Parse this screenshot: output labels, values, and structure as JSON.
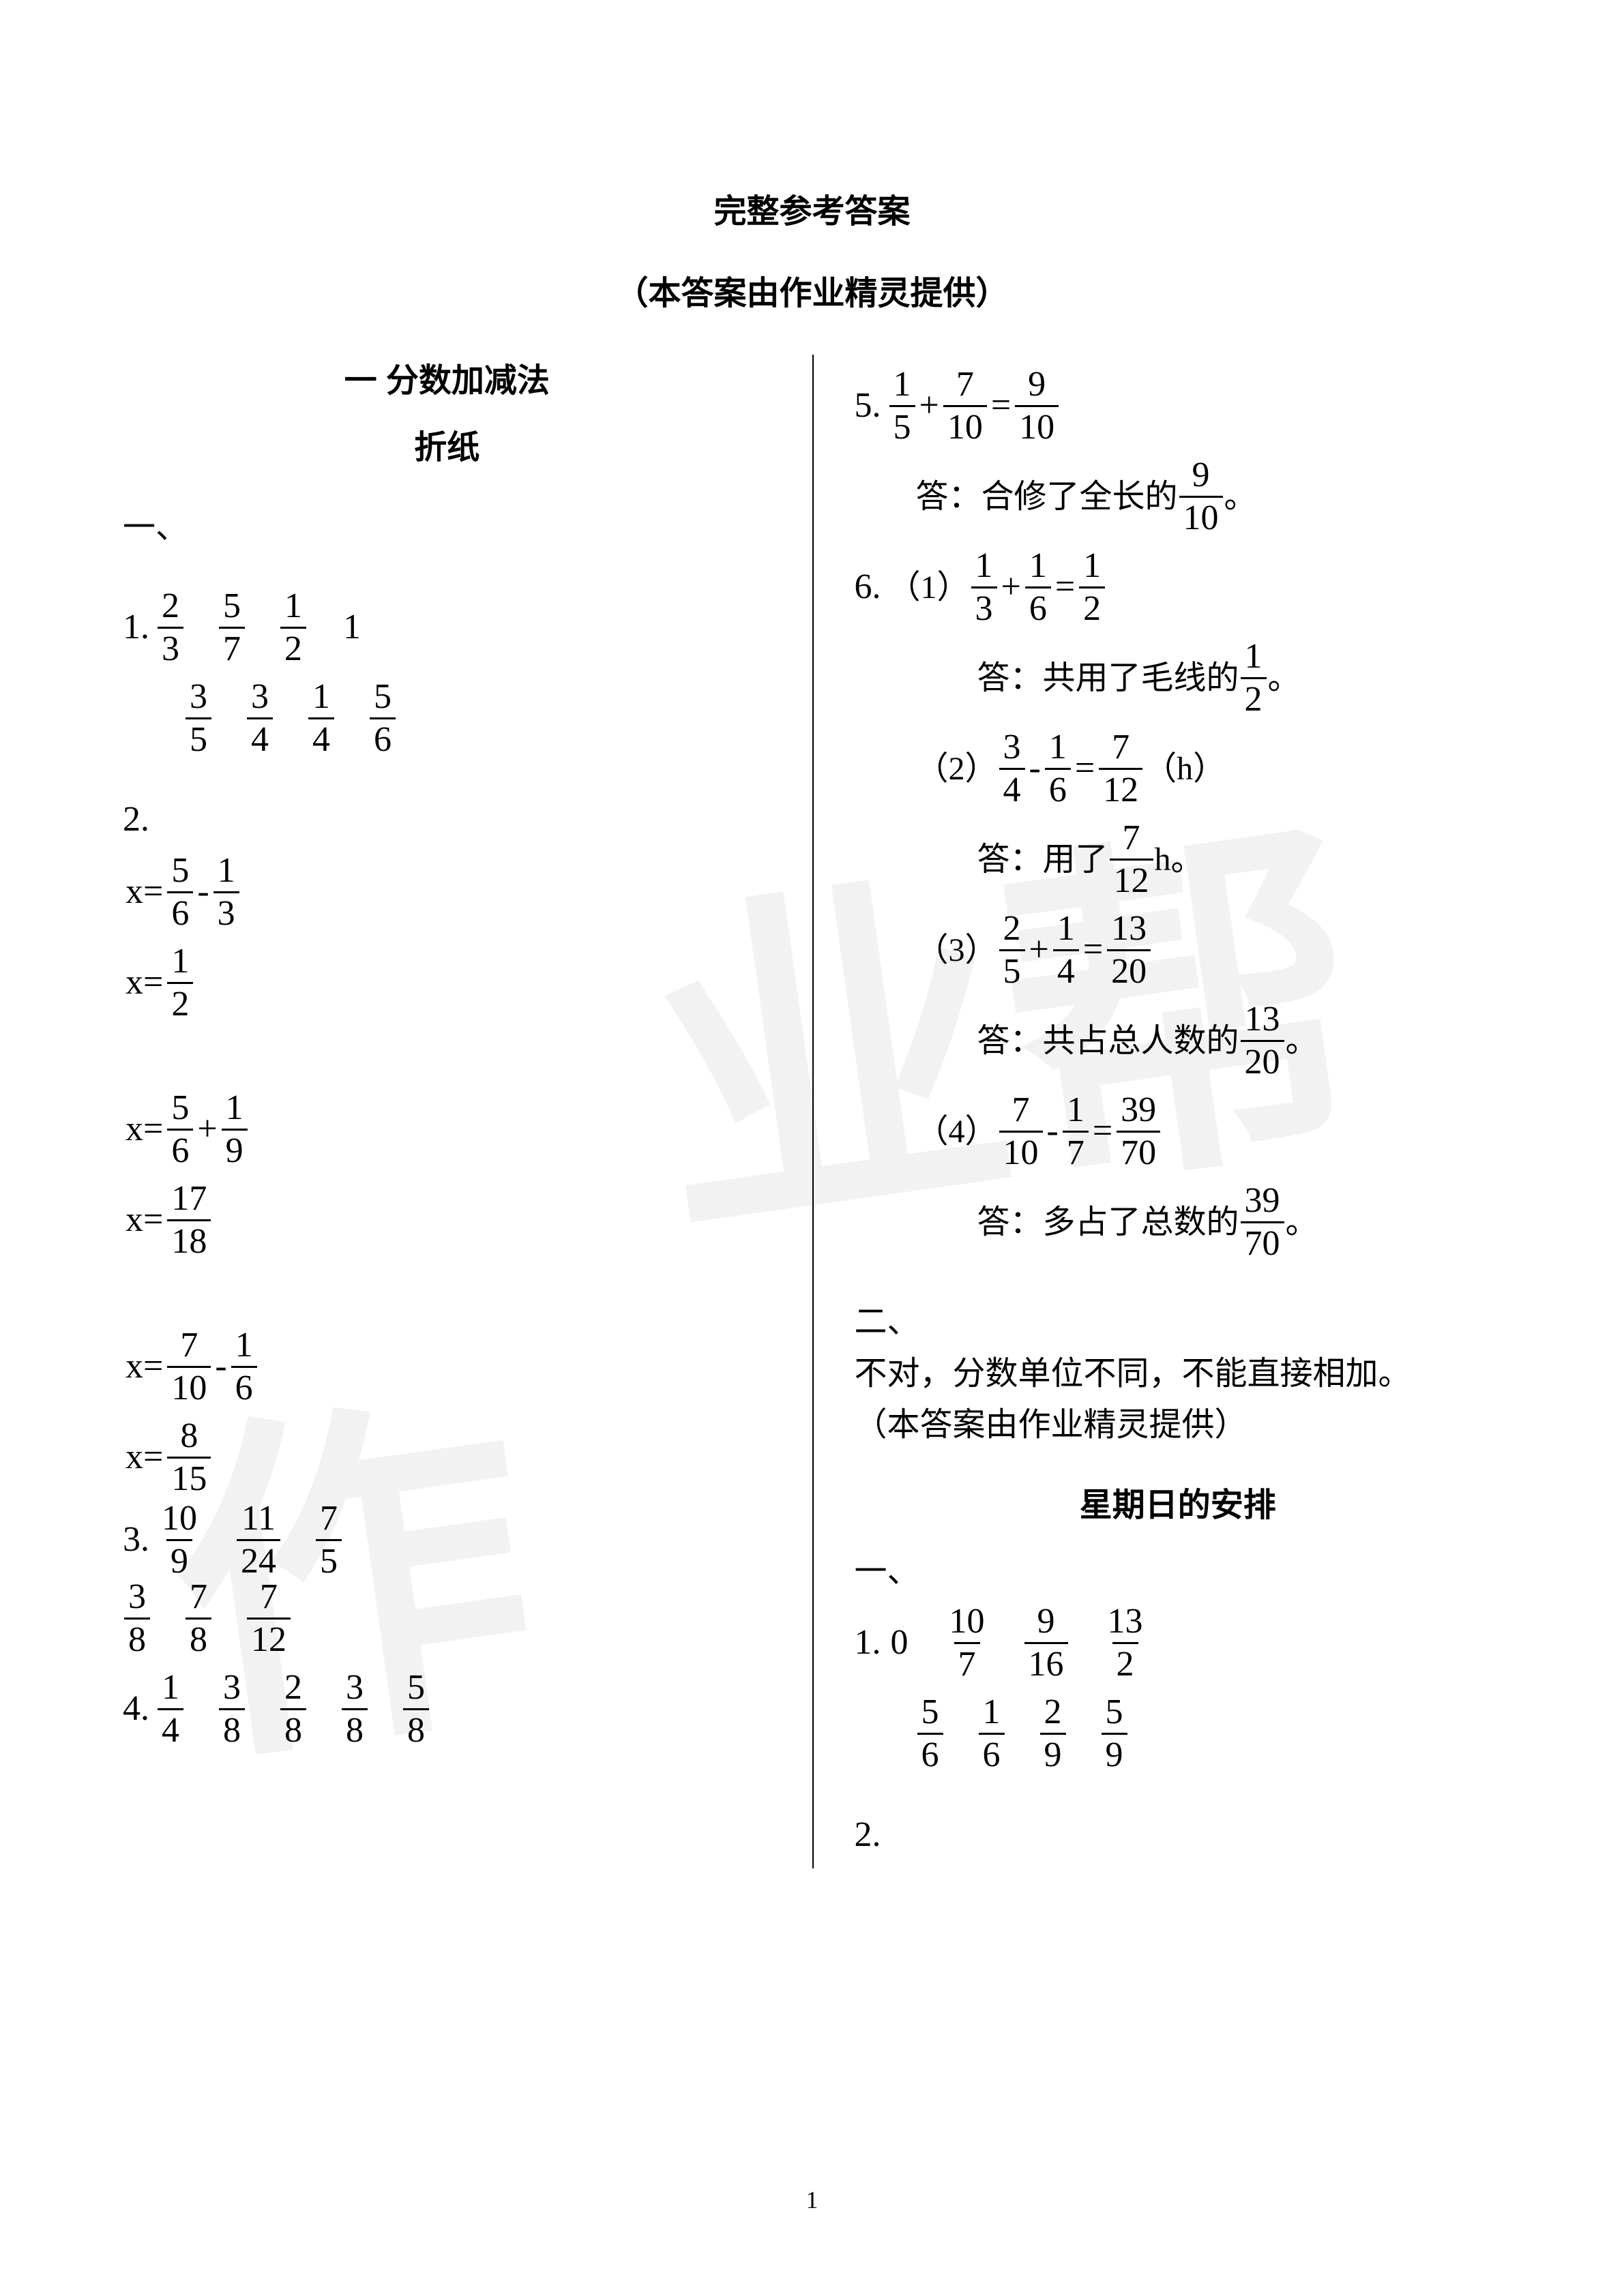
{
  "title_main": "完整参考答案",
  "title_sub": "（本答案由作业精灵提供）",
  "chapter": "一  分数加减法",
  "section_a": "折纸",
  "section_b": "星期日的安排",
  "sec_one": "一、",
  "sec_two": "二、",
  "attrib": "（本答案由作业精灵提供）",
  "page_num": "1",
  "left": {
    "q1_label": "1.",
    "q1r1": [
      {
        "n": "2",
        "d": "3"
      },
      {
        "n": "5",
        "d": "7"
      },
      {
        "n": "1",
        "d": "2"
      }
    ],
    "q1r1_plain": "1",
    "q1r2": [
      {
        "n": "3",
        "d": "5"
      },
      {
        "n": "3",
        "d": "4"
      },
      {
        "n": "1",
        "d": "4"
      },
      {
        "n": "5",
        "d": "6"
      }
    ],
    "q2_label": "2.",
    "q2a_lhs": "x=",
    "q2a_f1": {
      "n": "5",
      "d": "6"
    },
    "q2a_op": "-",
    "q2a_f2": {
      "n": "1",
      "d": "3"
    },
    "q2a_res_lhs": "x=",
    "q2a_res": {
      "n": "1",
      "d": "2"
    },
    "q2b_lhs": "x=",
    "q2b_f1": {
      "n": "5",
      "d": "6"
    },
    "q2b_op": "+",
    "q2b_f2": {
      "n": "1",
      "d": "9"
    },
    "q2b_res_lhs": "x=",
    "q2b_res": {
      "n": "17",
      "d": "18"
    },
    "q2c_lhs": "x=",
    "q2c_f1": {
      "n": "7",
      "d": "10"
    },
    "q2c_op": "-",
    "q2c_f2": {
      "n": "1",
      "d": "6"
    },
    "q2c_res_lhs": "x=",
    "q2c_res": {
      "n": "8",
      "d": "15"
    },
    "q3_label": "3.",
    "q3r1": [
      {
        "n": "10",
        "d": "9"
      },
      {
        "n": "11",
        "d": "24"
      },
      {
        "n": "7",
        "d": "5"
      }
    ],
    "q3r2": [
      {
        "n": "3",
        "d": "8"
      },
      {
        "n": "7",
        "d": "8"
      },
      {
        "n": "7",
        "d": "12"
      }
    ],
    "q4_label": "4.",
    "q4": [
      {
        "n": "1",
        "d": "4"
      },
      {
        "n": "3",
        "d": "8"
      },
      {
        "n": "2",
        "d": "8"
      },
      {
        "n": "3",
        "d": "8"
      },
      {
        "n": "5",
        "d": "8"
      }
    ]
  },
  "right": {
    "q5_label": "5.",
    "q5_f1": {
      "n": "1",
      "d": "5"
    },
    "q5_op1": "+",
    "q5_f2": {
      "n": "7",
      "d": "10"
    },
    "q5_eq": "=",
    "q5_f3": {
      "n": "9",
      "d": "10"
    },
    "q5_ans_a": "答：合修了全长的",
    "q5_ans_f": {
      "n": "9",
      "d": "10"
    },
    "q5_ans_b": "。",
    "q6_label": "6.",
    "q6_1_pre": "（1）",
    "q6_1_f1": {
      "n": "1",
      "d": "3"
    },
    "q6_1_op": "+",
    "q6_1_f2": {
      "n": "1",
      "d": "6"
    },
    "q6_1_eq": "=",
    "q6_1_f3": {
      "n": "1",
      "d": "2"
    },
    "q6_1_ans_a": "答：共用了毛线的",
    "q6_1_ans_f": {
      "n": "1",
      "d": "2"
    },
    "q6_1_ans_b": "。",
    "q6_2_pre": "（2）",
    "q6_2_f1": {
      "n": "3",
      "d": "4"
    },
    "q6_2_op": "-",
    "q6_2_f2": {
      "n": "1",
      "d": "6"
    },
    "q6_2_eq": "=",
    "q6_2_f3": {
      "n": "7",
      "d": "12"
    },
    "q6_2_unit": "（h）",
    "q6_2_ans_a": "答：用了",
    "q6_2_ans_f": {
      "n": "7",
      "d": "12"
    },
    "q6_2_ans_b": "h。",
    "q6_3_pre": "（3）",
    "q6_3_f1": {
      "n": "2",
      "d": "5"
    },
    "q6_3_op": "+",
    "q6_3_f2": {
      "n": "1",
      "d": "4"
    },
    "q6_3_eq": "=",
    "q6_3_f3": {
      "n": "13",
      "d": "20"
    },
    "q6_3_ans_a": "答：共占总人数的",
    "q6_3_ans_f": {
      "n": "13",
      "d": "20"
    },
    "q6_3_ans_b": "。",
    "q6_4_pre": "（4）",
    "q6_4_f1": {
      "n": "7",
      "d": "10"
    },
    "q6_4_op": "-",
    "q6_4_f2": {
      "n": "1",
      "d": "7"
    },
    "q6_4_eq": "=",
    "q6_4_f3": {
      "n": "39",
      "d": "70"
    },
    "q6_4_ans_a": "答：多占了总数的",
    "q6_4_ans_f": {
      "n": "39",
      "d": "70"
    },
    "q6_4_ans_b": "。",
    "sec2_text": "不对，分数单位不同，不能直接相加。",
    "sb_q1_label": "1.",
    "sb_q1_plain": "0",
    "sb_q1r1": [
      {
        "n": "10",
        "d": "7"
      },
      {
        "n": "9",
        "d": "16"
      },
      {
        "n": "13",
        "d": "2"
      }
    ],
    "sb_q1r2": [
      {
        "n": "5",
        "d": "6"
      },
      {
        "n": "1",
        "d": "6"
      },
      {
        "n": "2",
        "d": "9"
      },
      {
        "n": "5",
        "d": "9"
      }
    ],
    "sb_q2_label": "2."
  }
}
